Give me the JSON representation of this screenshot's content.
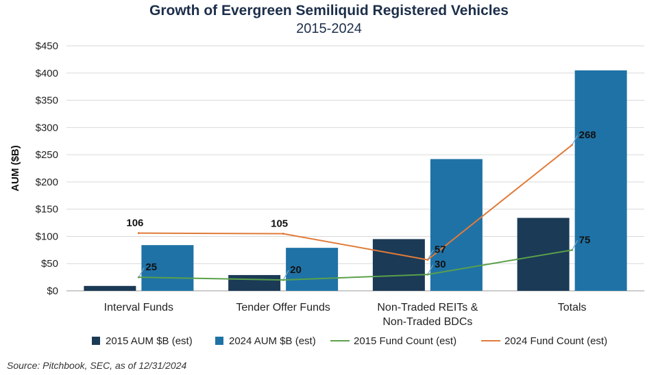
{
  "chart_data": {
    "type": "bar",
    "title": "Growth of Evergreen Semiliquid Registered Vehicles",
    "subtitle": "2015-2024",
    "ylabel": "AUM ($B)",
    "ylim": [
      0,
      450
    ],
    "yticks": [
      0,
      50,
      100,
      150,
      200,
      250,
      300,
      350,
      400,
      450
    ],
    "ytick_labels": [
      "$0",
      "$50",
      "$100",
      "$150",
      "$200",
      "$250",
      "$300",
      "$350",
      "$400",
      "$450"
    ],
    "categories": [
      [
        "Interval Funds"
      ],
      [
        "Tender Offer Funds"
      ],
      [
        "Non-Traded REITs &",
        "Non-Traded BDCs"
      ],
      [
        "Totals"
      ]
    ],
    "series": [
      {
        "name": "2015 AUM $B (est)",
        "kind": "bar",
        "color": "#1b3a56",
        "values": [
          9,
          29,
          95,
          134
        ]
      },
      {
        "name": "2024 AUM $B (est)",
        "kind": "bar",
        "color": "#1f72a6",
        "values": [
          84,
          79,
          242,
          405
        ]
      }
    ],
    "lines": [
      {
        "name": "2015 Fund Count (est)",
        "kind": "line",
        "color": "#5aa04a",
        "values": [
          25,
          20,
          30,
          75
        ],
        "labels": [
          "25",
          "20",
          "30",
          "75"
        ]
      },
      {
        "name": "2024 Fund Count (est)",
        "kind": "line",
        "color": "#e07b39",
        "values": [
          106,
          105,
          57,
          268
        ],
        "labels": [
          "106",
          "105",
          "57",
          "268"
        ]
      }
    ],
    "legend": [
      "2015 AUM $B (est)",
      "2024 AUM $B (est)",
      "2015 Fund Count (est)",
      "2024 Fund Count (est)"
    ],
    "legend_position": "bottom",
    "grid": true
  },
  "source": "Source: Pitchbook, SEC, as of 12/31/2024"
}
